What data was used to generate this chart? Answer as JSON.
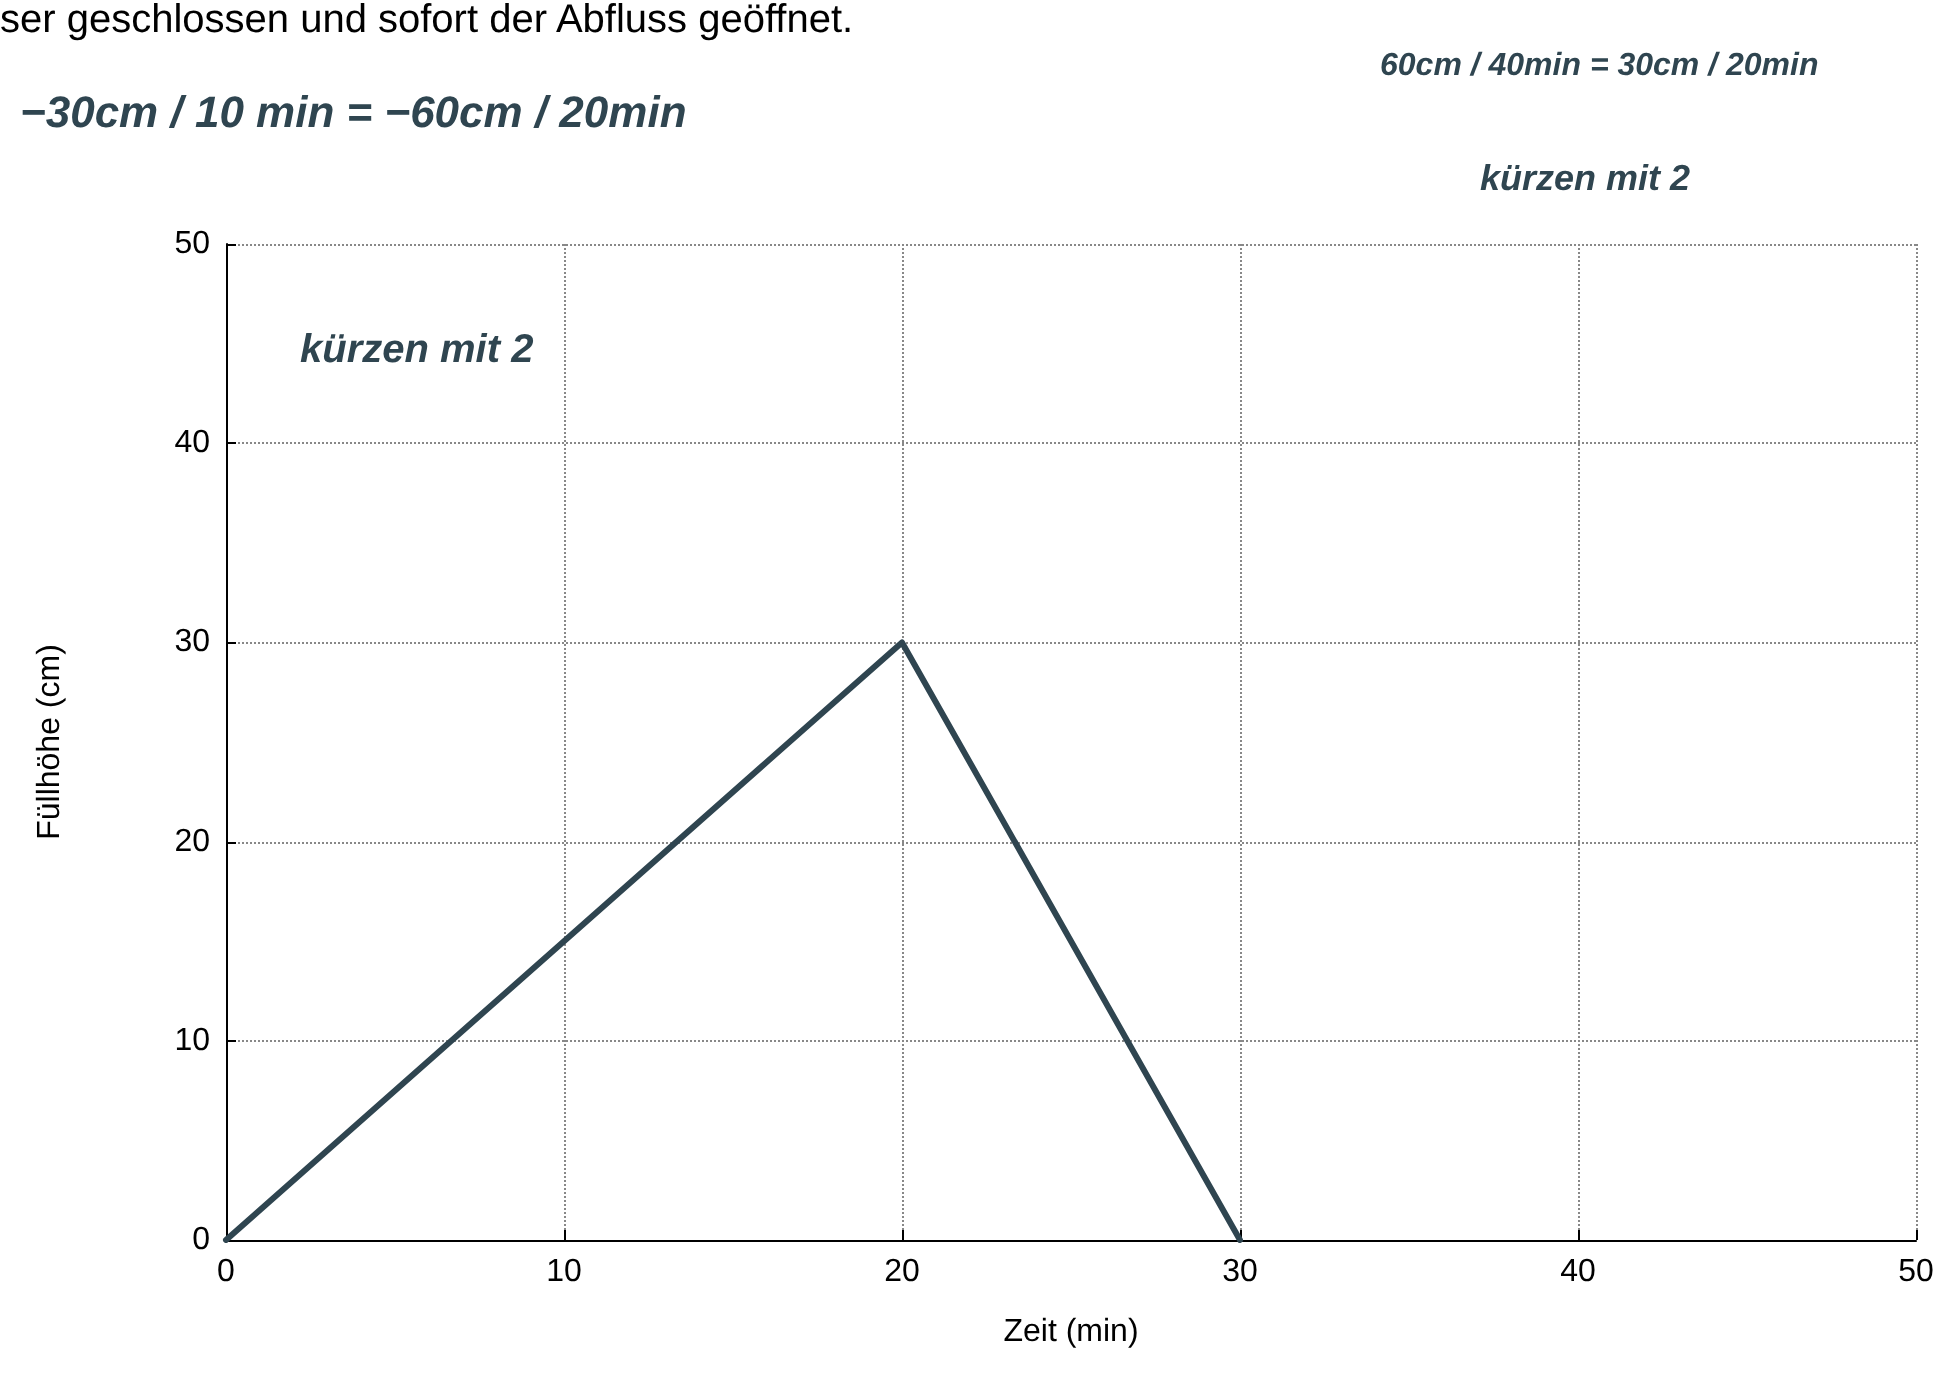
{
  "chart_data": {
    "type": "line",
    "xlabel": "Zeit (min)",
    "ylabel": "Füllhöhe (cm)",
    "x": [
      0,
      20,
      30
    ],
    "values": [
      0,
      30,
      0
    ],
    "color": "#2f4550",
    "xlim": [
      0,
      50
    ],
    "ylim": [
      0,
      50
    ],
    "xticks": [
      0,
      10,
      20,
      30,
      40,
      50
    ],
    "yticks": [
      0,
      10,
      20,
      30,
      40,
      50
    ],
    "grid": true,
    "marker": "none",
    "line_style": "solid",
    "annotations": [
      "ser geschlossen und sofort der Abfluss geöffnet.",
      "−30cm / 10 min = −60cm / 20min",
      "kürzen mit 2",
      "60cm / 40min = 30cm / 20min",
      "kürzen mit 2"
    ]
  }
}
